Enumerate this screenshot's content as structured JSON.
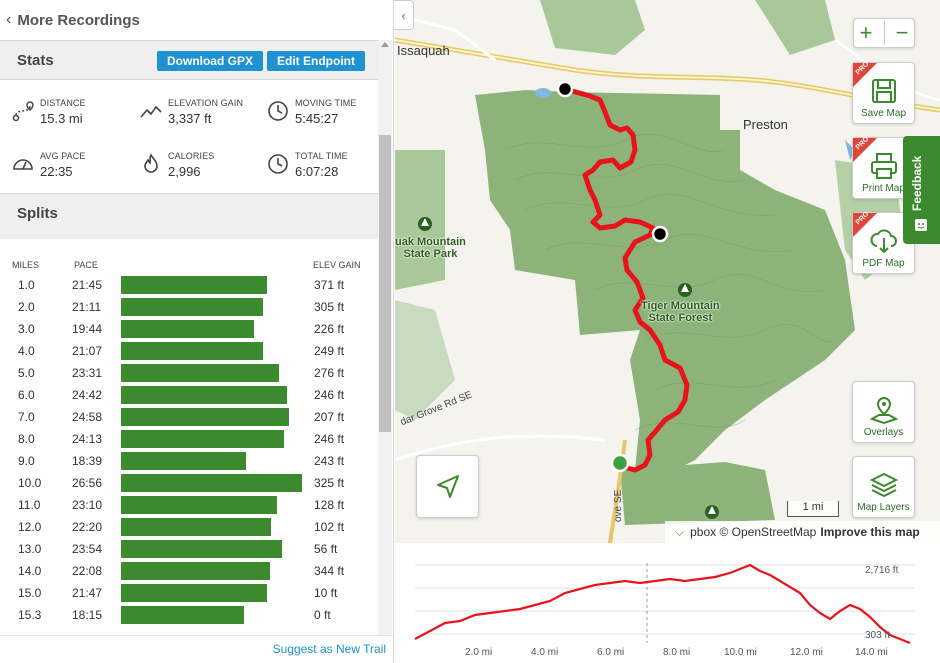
{
  "header": {
    "back_label": "More Recordings"
  },
  "stats": {
    "title": "Stats",
    "download_label": "Download GPX",
    "edit_label": "Edit Endpoint",
    "items": [
      {
        "label": "DISTANCE",
        "value": "15.3 mi",
        "icon": "route-icon"
      },
      {
        "label": "ELEVATION GAIN",
        "value": "3,337 ft",
        "icon": "elevation-icon"
      },
      {
        "label": "MOVING TIME",
        "value": "5:45:27",
        "icon": "clock-icon"
      },
      {
        "label": "AVG PACE",
        "value": "22:35",
        "icon": "speedometer-icon"
      },
      {
        "label": "CALORIES",
        "value": "2,996",
        "icon": "flame-icon"
      },
      {
        "label": "TOTAL TIME",
        "value": "6:07:28",
        "icon": "clock-icon"
      }
    ]
  },
  "splits": {
    "title": "Splits",
    "col_miles": "MILES",
    "col_pace": "PACE",
    "col_gain": "ELEV GAIN",
    "rows": [
      {
        "mile": "1.0",
        "pace": "21:45",
        "pace_min": 21.75,
        "gain": "371 ft"
      },
      {
        "mile": "2.0",
        "pace": "21:11",
        "pace_min": 21.18,
        "gain": "305 ft"
      },
      {
        "mile": "3.0",
        "pace": "19:44",
        "pace_min": 19.73,
        "gain": "226 ft"
      },
      {
        "mile": "4.0",
        "pace": "21:07",
        "pace_min": 21.12,
        "gain": "249 ft"
      },
      {
        "mile": "5.0",
        "pace": "23:31",
        "pace_min": 23.52,
        "gain": "276 ft"
      },
      {
        "mile": "6.0",
        "pace": "24:42",
        "pace_min": 24.7,
        "gain": "246 ft"
      },
      {
        "mile": "7.0",
        "pace": "24:58",
        "pace_min": 24.97,
        "gain": "207 ft"
      },
      {
        "mile": "8.0",
        "pace": "24:13",
        "pace_min": 24.22,
        "gain": "246 ft"
      },
      {
        "mile": "9.0",
        "pace": "18:39",
        "pace_min": 18.65,
        "gain": "243 ft"
      },
      {
        "mile": "10.0",
        "pace": "26:56",
        "pace_min": 26.93,
        "gain": "325 ft"
      },
      {
        "mile": "11.0",
        "pace": "23:10",
        "pace_min": 23.17,
        "gain": "128 ft"
      },
      {
        "mile": "12.0",
        "pace": "22:20",
        "pace_min": 22.33,
        "gain": "102 ft"
      },
      {
        "mile": "13.0",
        "pace": "23:54",
        "pace_min": 23.9,
        "gain": "56 ft"
      },
      {
        "mile": "14.0",
        "pace": "22:08",
        "pace_min": 22.13,
        "gain": "344 ft"
      },
      {
        "mile": "15.0",
        "pace": "21:47",
        "pace_min": 21.78,
        "gain": "10 ft"
      },
      {
        "mile": "15.3",
        "pace": "18:15",
        "pace_min": 18.25,
        "gain": "0 ft"
      }
    ]
  },
  "footer": {
    "suggest_label": "Suggest as New Trail"
  },
  "map": {
    "labels": {
      "issaquah": "Issaquah",
      "preston": "Preston",
      "park1_line1": "uak Mountain",
      "park1_line2": "State Park",
      "park2_line1": "Tiger Mountain",
      "park2_line2": "State Forest",
      "road": "dar Grove Rd SE",
      "road2": "ove SE"
    },
    "buttons": {
      "zoom_in": "+",
      "zoom_out": "−",
      "save": "Save Map",
      "print": "Print Map",
      "pdf": "PDF Map",
      "overlays": "Overlays",
      "layers": "Map Layers",
      "pro": "PRO",
      "feedback": "Feedback"
    },
    "scale": "1 mi",
    "attribution_prefix": "pbox © OpenStreetMap",
    "attribution_link": "Improve this map",
    "colors": {
      "route": "#e8141b",
      "park": "#8db37a",
      "button_green": "#3c8a2e"
    }
  },
  "elevation": {
    "y_labels": [
      "2,716 ft",
      "303 ft"
    ],
    "x_labels": [
      "2.0 mi",
      "4.0 mi",
      "6.0 mi",
      "8.0 mi",
      "10.0 mi",
      "12.0 mi",
      "14.0 mi"
    ]
  }
}
